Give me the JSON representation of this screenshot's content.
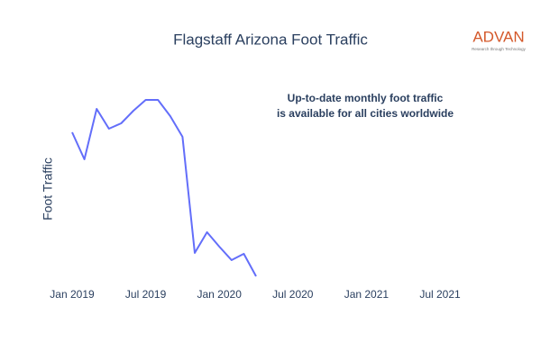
{
  "chart_data": {
    "type": "line",
    "title": "Flagstaff Arizona Foot Traffic",
    "y_label": "Foot Traffic",
    "annotation": [
      "Up-to-date monthly foot traffic",
      "is available for all cities worldwide"
    ],
    "logo": {
      "name": "ADVAN",
      "tagline": "Research through Technology"
    },
    "x": [
      "2019-01",
      "2019-02",
      "2019-03",
      "2019-04",
      "2019-05",
      "2019-06",
      "2019-07",
      "2019-08",
      "2019-09",
      "2019-10",
      "2019-11",
      "2019-12",
      "2020-01",
      "2020-02",
      "2020-03",
      "2020-04"
    ],
    "series": [
      {
        "name": "Foot Traffic",
        "color": "#636efa",
        "values": [
          168,
          138,
          194,
          172,
          178,
          192,
          204,
          204,
          186,
          163,
          34,
          57,
          41,
          26,
          33,
          8
        ]
      }
    ],
    "xlim": [
      "2018-12",
      "2021-12"
    ],
    "xticks": [
      {
        "value": "2019-01",
        "label": "Jan 2019"
      },
      {
        "value": "2019-07",
        "label": "Jul 2019"
      },
      {
        "value": "2020-01",
        "label": "Jan 2020"
      },
      {
        "value": "2020-07",
        "label": "Jul 2020"
      },
      {
        "value": "2021-01",
        "label": "Jan 2021"
      },
      {
        "value": "2021-07",
        "label": "Jul 2021"
      }
    ],
    "ylim": [
      0,
      220
    ],
    "grid": false
  }
}
